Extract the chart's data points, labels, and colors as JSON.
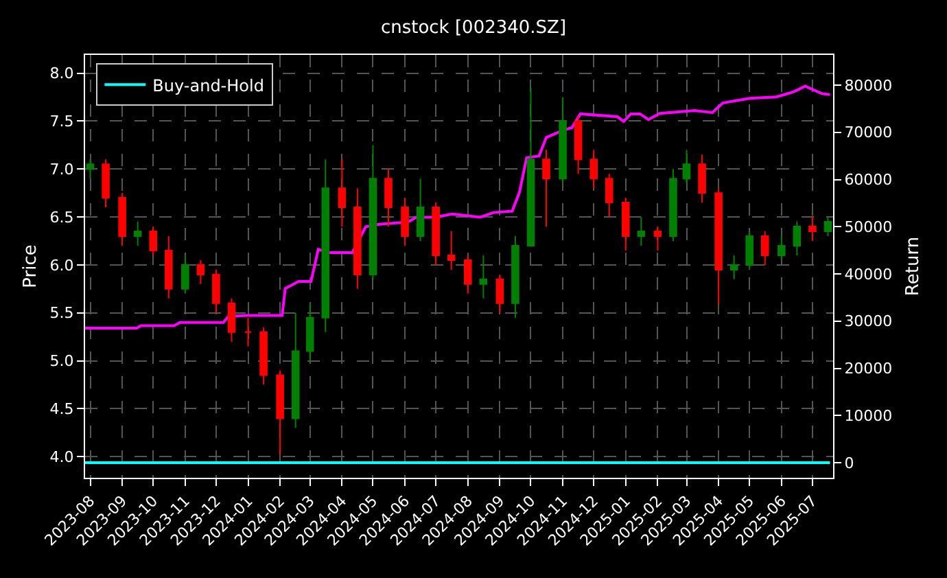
{
  "chart_data": {
    "type": "candlestick",
    "title": "cnstock [002340.SZ]",
    "ylabel": "Price",
    "y2label": "Return",
    "x": [
      "2023-08-01",
      "2023-08-16",
      "2023-09-01",
      "2023-09-16",
      "2023-10-01",
      "2023-10-16",
      "2023-11-01",
      "2023-11-16",
      "2023-12-01",
      "2023-12-16",
      "2024-01-01",
      "2024-01-16",
      "2024-02-01",
      "2024-02-16",
      "2024-03-01",
      "2024-03-16",
      "2024-04-01",
      "2024-04-16",
      "2024-05-01",
      "2024-05-16",
      "2024-06-01",
      "2024-06-16",
      "2024-07-01",
      "2024-07-16",
      "2024-08-01",
      "2024-08-16",
      "2024-09-01",
      "2024-09-16",
      "2024-10-01",
      "2024-10-16",
      "2024-11-01",
      "2024-11-16",
      "2024-12-01",
      "2024-12-16",
      "2025-01-01",
      "2025-01-16",
      "2025-02-01",
      "2025-02-16",
      "2025-03-01",
      "2025-03-16",
      "2025-04-01",
      "2025-04-16",
      "2025-05-01",
      "2025-05-16",
      "2025-06-01",
      "2025-06-16",
      "2025-07-01",
      "2025-07-16"
    ],
    "ohlc": [
      [
        7.0,
        7.1,
        6.9,
        7.05
      ],
      [
        7.05,
        7.1,
        6.6,
        6.7
      ],
      [
        6.7,
        6.75,
        6.2,
        6.3
      ],
      [
        6.3,
        6.45,
        6.2,
        6.35
      ],
      [
        6.35,
        6.4,
        6.1,
        6.15
      ],
      [
        6.15,
        6.3,
        5.65,
        5.75
      ],
      [
        5.75,
        6.1,
        5.7,
        6.0
      ],
      [
        6.0,
        6.05,
        5.8,
        5.9
      ],
      [
        5.9,
        5.95,
        5.5,
        5.6
      ],
      [
        5.6,
        5.65,
        5.2,
        5.3
      ],
      [
        5.3,
        5.45,
        5.15,
        5.3
      ],
      [
        5.3,
        5.35,
        4.75,
        4.85
      ],
      [
        4.85,
        4.9,
        4.02,
        4.4
      ],
      [
        4.4,
        5.5,
        4.3,
        5.1
      ],
      [
        5.1,
        5.6,
        5.0,
        5.45
      ],
      [
        5.45,
        7.1,
        5.3,
        6.8
      ],
      [
        6.8,
        7.1,
        6.4,
        6.6
      ],
      [
        6.6,
        6.8,
        5.75,
        5.9
      ],
      [
        5.9,
        7.25,
        5.85,
        6.9
      ],
      [
        6.9,
        7.0,
        6.4,
        6.6
      ],
      [
        6.6,
        6.7,
        6.2,
        6.3
      ],
      [
        6.3,
        6.9,
        6.25,
        6.6
      ],
      [
        6.6,
        6.65,
        6.0,
        6.1
      ],
      [
        6.1,
        6.35,
        5.95,
        6.05
      ],
      [
        6.05,
        6.1,
        5.7,
        5.8
      ],
      [
        5.8,
        6.1,
        5.65,
        5.85
      ],
      [
        5.85,
        5.9,
        5.5,
        5.6
      ],
      [
        5.6,
        6.3,
        5.45,
        6.2
      ],
      [
        6.2,
        7.85,
        6.2,
        7.1
      ],
      [
        7.1,
        7.2,
        6.4,
        6.9
      ],
      [
        6.9,
        7.75,
        6.85,
        7.5
      ],
      [
        7.5,
        7.55,
        6.95,
        7.1
      ],
      [
        7.1,
        7.2,
        6.8,
        6.9
      ],
      [
        6.9,
        6.95,
        6.5,
        6.65
      ],
      [
        6.65,
        6.7,
        6.15,
        6.3
      ],
      [
        6.3,
        6.5,
        6.2,
        6.35
      ],
      [
        6.35,
        6.4,
        6.15,
        6.3
      ],
      [
        6.3,
        7.0,
        6.25,
        6.9
      ],
      [
        6.9,
        7.2,
        6.85,
        7.05
      ],
      [
        7.05,
        7.15,
        6.65,
        6.75
      ],
      [
        6.75,
        6.8,
        5.6,
        5.95
      ],
      [
        5.95,
        6.1,
        5.85,
        6.0
      ],
      [
        6.0,
        6.35,
        5.95,
        6.3
      ],
      [
        6.3,
        6.35,
        6.0,
        6.1
      ],
      [
        6.1,
        6.3,
        6.05,
        6.2
      ],
      [
        6.2,
        6.45,
        6.1,
        6.4
      ],
      [
        6.4,
        6.5,
        6.25,
        6.35
      ],
      [
        6.35,
        6.5,
        6.3,
        6.45
      ]
    ],
    "colors": [
      "#008000",
      "#ff0000",
      "#ff0000",
      "#008000",
      "#ff0000",
      "#ff0000",
      "#008000",
      "#ff0000",
      "#ff0000",
      "#ff0000",
      "#ff0000",
      "#ff0000",
      "#ff0000",
      "#008000",
      "#008000",
      "#008000",
      "#ff0000",
      "#ff0000",
      "#008000",
      "#ff0000",
      "#ff0000",
      "#008000",
      "#ff0000",
      "#ff0000",
      "#ff0000",
      "#008000",
      "#ff0000",
      "#008000",
      "#008000",
      "#ff0000",
      "#008000",
      "#ff0000",
      "#ff0000",
      "#ff0000",
      "#ff0000",
      "#008000",
      "#ff0000",
      "#008000",
      "#008000",
      "#ff0000",
      "#ff0000",
      "#008000",
      "#008000",
      "#ff0000",
      "#008000",
      "#008000",
      "#ff0000",
      "#008000"
    ],
    "series": [
      {
        "type": "line",
        "axis": "y2",
        "color": "#ff00ff",
        "x": [
          "2023-07-27",
          "2023-09-15",
          "2023-09-19",
          "2023-10-21",
          "2023-10-27",
          "2023-12-08",
          "2023-12-13",
          "2023-12-31",
          "2024-02-03",
          "2024-02-06",
          "2024-02-19",
          "2024-03-02",
          "2024-03-09",
          "2024-03-20",
          "2024-04-11",
          "2024-04-24",
          "2024-05-07",
          "2024-06-04",
          "2024-06-12",
          "2024-06-30",
          "2024-07-17",
          "2024-08-13",
          "2024-08-26",
          "2024-09-13",
          "2024-09-20",
          "2024-09-27",
          "2024-10-09",
          "2024-10-16",
          "2024-11-01",
          "2024-11-10",
          "2024-11-18",
          "2024-12-24",
          "2024-12-30",
          "2025-01-06",
          "2025-01-15",
          "2025-01-23",
          "2025-02-03",
          "2025-03-09",
          "2025-03-26",
          "2025-04-05",
          "2025-05-01",
          "2025-05-27",
          "2025-06-13",
          "2025-06-24",
          "2025-07-10",
          "2025-07-18"
        ],
        "values": [
          28500,
          28500,
          29000,
          29000,
          29700,
          29700,
          31000,
          31200,
          31200,
          36900,
          38400,
          38400,
          45200,
          44500,
          44500,
          50000,
          50500,
          51000,
          52000,
          52000,
          52700,
          52000,
          53000,
          53300,
          57300,
          64600,
          65000,
          68900,
          70400,
          71000,
          73900,
          73300,
          72300,
          73900,
          73900,
          72700,
          74000,
          74600,
          74200,
          76200,
          77200,
          77500,
          78600,
          79800,
          78200,
          78000
        ]
      },
      {
        "type": "line",
        "axis": "y2",
        "name": "Buy-and-Hold",
        "color": "#00ffff",
        "x": [
          "2023-07-27",
          "2025-07-18"
        ],
        "values": [
          0,
          0
        ]
      }
    ],
    "xlim": [
      "2023-07-27",
      "2025-07-21"
    ],
    "xticks": [
      "2023-08",
      "2023-09",
      "2023-10",
      "2023-11",
      "2023-12",
      "2024-01",
      "2024-02",
      "2024-03",
      "2024-04",
      "2024-05",
      "2024-06",
      "2024-07",
      "2024-08",
      "2024-09",
      "2024-10",
      "2024-11",
      "2024-12",
      "2025-01",
      "2025-02",
      "2025-03",
      "2025-04",
      "2025-05",
      "2025-06",
      "2025-07"
    ],
    "ylim": [
      3.78,
      8.19
    ],
    "yticks": [
      {
        "value": 4,
        "label": "4.0"
      },
      {
        "value": 4.5,
        "label": "4.5"
      },
      {
        "value": 5,
        "label": "5.0"
      },
      {
        "value": 5.5,
        "label": "5.5"
      },
      {
        "value": 6,
        "label": "6.0"
      },
      {
        "value": 6.5,
        "label": "6.5"
      },
      {
        "value": 7,
        "label": "7.0"
      },
      {
        "value": 7.5,
        "label": "7.5"
      },
      {
        "value": 8,
        "label": "8.0"
      }
    ],
    "y2lim": [
      -3200,
      86400
    ],
    "y2ticks": [
      0,
      10000,
      20000,
      30000,
      40000,
      50000,
      60000,
      70000,
      80000
    ],
    "grid": true,
    "legend": "top left",
    "line_style": "solid",
    "marker": "none"
  }
}
